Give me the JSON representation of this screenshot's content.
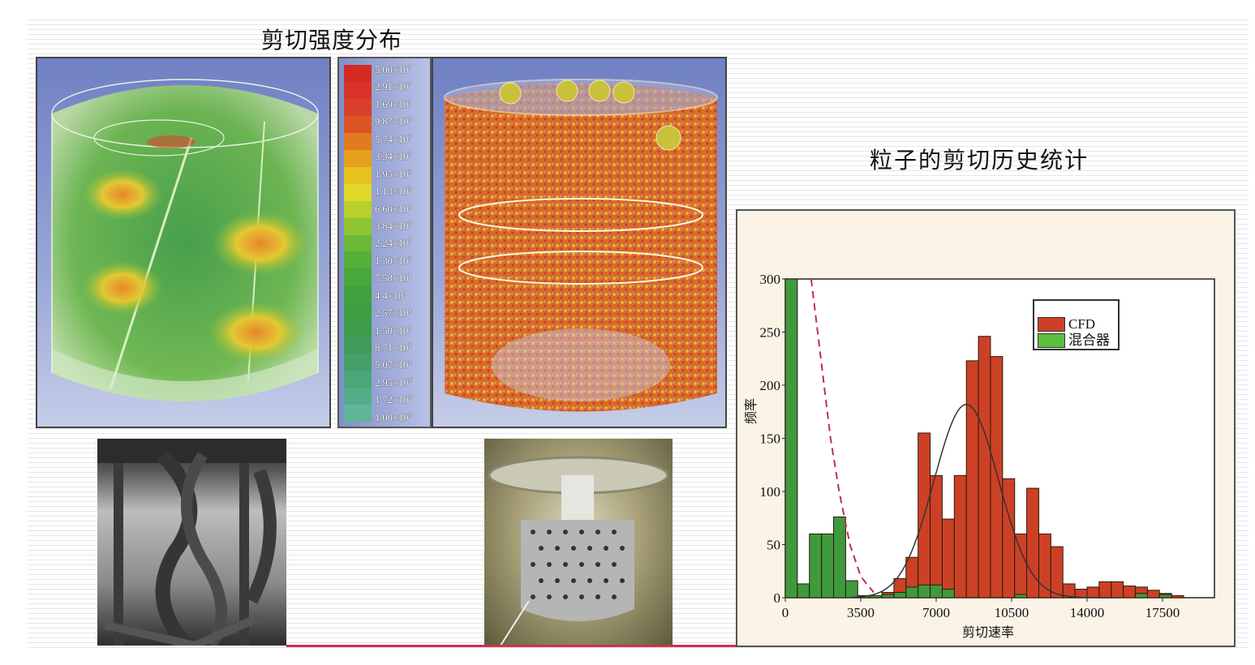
{
  "titles": {
    "left": "剪切强度分布",
    "right": "粒子的剪切历史统计"
  },
  "colorbar": {
    "labels": [
      {
        "m": "5.00",
        "e": "4"
      },
      {
        "m": "2.91",
        "e": "4"
      },
      {
        "m": "1.69",
        "e": "4"
      },
      {
        "m": "9.87",
        "e": "3"
      },
      {
        "m": "5.74",
        "e": "3"
      },
      {
        "m": "3.34",
        "e": "3"
      },
      {
        "m": "1.95",
        "e": "3"
      },
      {
        "m": "1.13",
        "e": "3"
      },
      {
        "m": "6.60",
        "e": "2"
      },
      {
        "m": "3.84",
        "e": "2"
      },
      {
        "m": "2.24",
        "e": "2"
      },
      {
        "m": "1.30",
        "e": "2"
      },
      {
        "m": "7.58",
        "e": "1"
      },
      {
        "m": "4.4",
        "e": "1"
      },
      {
        "m": "2.57",
        "e": "1"
      },
      {
        "m": "1.50",
        "e": "1"
      },
      {
        "m": "8.71",
        "e": "0"
      },
      {
        "m": "5.07",
        "e": "0"
      },
      {
        "m": "2.95",
        "e": "0"
      },
      {
        "m": "1.72",
        "e": "0"
      },
      {
        "m": "1.00",
        "e": "0"
      }
    ],
    "colors": [
      "#d42a22",
      "#d8322a",
      "#d9402a",
      "#dc5426",
      "#e27a22",
      "#e7a01e",
      "#e8c21e",
      "#dfd82a",
      "#b8cf2c",
      "#8ec532",
      "#6cb936",
      "#55b03a",
      "#48a83c",
      "#40a23c",
      "#3c9e40",
      "#3d9c48",
      "#3f9c58",
      "#44a068",
      "#4ba678",
      "#54ad88",
      "#5fb597"
    ],
    "times_sign": "×",
    "base": "10"
  },
  "simulations": {
    "left": {
      "label": "mixer-simulation-low-shear"
    },
    "right": {
      "label": "mixer-simulation-high-shear"
    }
  },
  "chart_data": {
    "type": "bar",
    "title": "粒子的剪切历史统计",
    "xlabel": "剪切速率",
    "ylabel": "频率",
    "xlim": [
      0,
      19800
    ],
    "ylim": [
      0,
      300
    ],
    "xticks": [
      0,
      3500,
      7000,
      10500,
      14000,
      17500
    ],
    "yticks": [
      0,
      50,
      100,
      150,
      200,
      250,
      300
    ],
    "bin_width": 560,
    "legend": {
      "position": "upper right",
      "entries": [
        "CFD",
        "混合器"
      ]
    },
    "grid": false,
    "series": [
      {
        "name": "CFD",
        "color": "#cc4125",
        "bins": [
          [
            4480,
            5
          ],
          [
            5040,
            18
          ],
          [
            5600,
            38
          ],
          [
            6160,
            155
          ],
          [
            6720,
            115
          ],
          [
            7280,
            74
          ],
          [
            7840,
            115
          ],
          [
            8400,
            223
          ],
          [
            8960,
            246
          ],
          [
            9520,
            227
          ],
          [
            10080,
            112
          ],
          [
            10640,
            60
          ],
          [
            11200,
            103
          ],
          [
            11760,
            60
          ],
          [
            12320,
            48
          ],
          [
            12880,
            13
          ],
          [
            13440,
            8
          ],
          [
            14000,
            10
          ],
          [
            14560,
            15
          ],
          [
            15120,
            15
          ],
          [
            15680,
            11
          ],
          [
            16240,
            10
          ],
          [
            16800,
            7
          ],
          [
            17360,
            4
          ],
          [
            17920,
            2
          ]
        ]
      },
      {
        "name": "混合器",
        "color": "#3f9a3b",
        "bins": [
          [
            0,
            300
          ],
          [
            560,
            13
          ],
          [
            1120,
            60
          ],
          [
            1680,
            60
          ],
          [
            2240,
            76
          ],
          [
            2800,
            16
          ],
          [
            3360,
            2
          ],
          [
            3920,
            2
          ],
          [
            4480,
            3
          ],
          [
            5040,
            5
          ],
          [
            5600,
            10
          ],
          [
            6160,
            12
          ],
          [
            6720,
            12
          ],
          [
            7280,
            8
          ],
          [
            10640,
            3
          ],
          [
            16240,
            4
          ],
          [
            17360,
            3
          ]
        ]
      }
    ],
    "overlays": [
      {
        "name": "normal-fit-cfd",
        "style": "solid",
        "color": "#333333",
        "mean": 8400,
        "peak": 182,
        "sigma": 1500
      },
      {
        "name": "mixer-fit-curve",
        "style": "dashed",
        "color": "#c0304a",
        "points": [
          [
            1200,
            300
          ],
          [
            1500,
            250
          ],
          [
            1800,
            200
          ],
          [
            2100,
            150
          ],
          [
            2500,
            100
          ],
          [
            3000,
            50
          ],
          [
            3500,
            20
          ],
          [
            4100,
            5
          ]
        ]
      }
    ]
  }
}
